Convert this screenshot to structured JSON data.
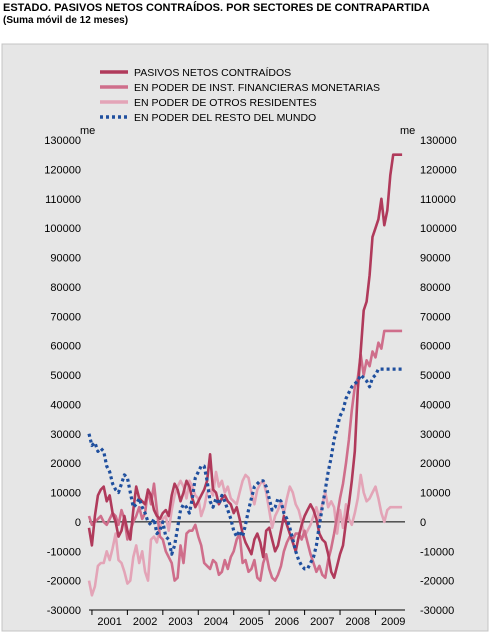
{
  "title": "ESTADO. PASIVOS NETOS CONTRAÍDOS. POR SECTORES DE CONTRAPARTIDA",
  "subtitle": "(Suma móvil de 12 meses)",
  "chart_data": {
    "type": "line",
    "y_unit_left": "me",
    "y_unit_right": "me",
    "ylim": [
      -30000,
      130000
    ],
    "y_ticks": [
      130000,
      120000,
      110000,
      100000,
      90000,
      80000,
      70000,
      60000,
      50000,
      40000,
      30000,
      20000,
      10000,
      0,
      -10000,
      -20000,
      -30000
    ],
    "x_range": [
      2000.917,
      2009.833
    ],
    "x_tick_labels": [
      "2001",
      "2002",
      "2003",
      "2004",
      "2005",
      "2006",
      "2007",
      "2008",
      "2009"
    ],
    "x_tick_positions": [
      2001.5,
      2002.5,
      2003.5,
      2004.5,
      2005.5,
      2006.5,
      2007.5,
      2008.5,
      2009.5
    ],
    "grid": false,
    "legend_position": "top-left",
    "series": [
      {
        "name": "PASIVOS NETOS CONTRAÍDOS",
        "color": "#b03a5b",
        "style": "solid",
        "x": [
          2000.917,
          2001.0,
          2001.083,
          2001.167,
          2001.25,
          2001.333,
          2001.417,
          2001.5,
          2001.583,
          2001.667,
          2001.75,
          2001.833,
          2001.917,
          2002.0,
          2002.083,
          2002.167,
          2002.25,
          2002.333,
          2002.417,
          2002.5,
          2002.583,
          2002.667,
          2002.75,
          2002.833,
          2002.917,
          2003.0,
          2003.083,
          2003.167,
          2003.25,
          2003.333,
          2003.417,
          2003.5,
          2003.583,
          2003.667,
          2003.75,
          2003.833,
          2003.917,
          2004.0,
          2004.083,
          2004.167,
          2004.25,
          2004.333,
          2004.417,
          2004.5,
          2004.583,
          2004.667,
          2004.75,
          2004.833,
          2004.917,
          2005.0,
          2005.083,
          2005.167,
          2005.25,
          2005.333,
          2005.417,
          2005.5,
          2005.583,
          2005.667,
          2005.75,
          2005.833,
          2005.917,
          2006.0,
          2006.083,
          2006.167,
          2006.25,
          2006.333,
          2006.417,
          2006.5,
          2006.583,
          2006.667,
          2006.75,
          2006.833,
          2006.917,
          2007.0,
          2007.083,
          2007.167,
          2007.25,
          2007.333,
          2007.417,
          2007.5,
          2007.583,
          2007.667,
          2007.75,
          2007.833,
          2007.917,
          2008.0,
          2008.083,
          2008.167,
          2008.25,
          2008.333,
          2008.417,
          2008.5,
          2008.583,
          2008.667,
          2008.75,
          2008.833,
          2008.917,
          2009.0,
          2009.083,
          2009.167,
          2009.25,
          2009.333,
          2009.417,
          2009.5,
          2009.583,
          2009.667,
          2009.75
        ],
        "values": [
          -2000,
          -8000,
          2000,
          9000,
          11000,
          12000,
          7000,
          9000,
          3000,
          0,
          -5000,
          -3000,
          2000,
          -3000,
          -6000,
          4000,
          12000,
          8000,
          7000,
          6000,
          11000,
          9000,
          4000,
          2000,
          1000,
          3000,
          4000,
          2000,
          9000,
          13000,
          11000,
          7000,
          10000,
          14000,
          12000,
          8000,
          5000,
          7000,
          9000,
          11000,
          14000,
          23000,
          11000,
          10000,
          6000,
          8000,
          9000,
          7000,
          6000,
          3000,
          5000,
          1000,
          -4000,
          -7000,
          -9000,
          -11000,
          -6000,
          -4000,
          -7000,
          -12000,
          -3000,
          -2000,
          -6000,
          -10000,
          -8000,
          -3000,
          2000,
          -1000,
          -4000,
          -7000,
          -10000,
          -5000,
          -1000,
          2000,
          4000,
          6000,
          4000,
          1000,
          -4000,
          -6000,
          -7000,
          -11000,
          -17000,
          -19000,
          -15000,
          -11000,
          -8000,
          0,
          6000,
          14000,
          24000,
          45000,
          58000,
          72000,
          75000,
          84000,
          97000,
          100000,
          103000,
          110000,
          101000,
          106000,
          118000,
          125000,
          125000,
          125000,
          125000
        ],
        "x_end": 2009.75
      },
      {
        "name": "EN PODER DE INST. FINANCIERAS MONETARIAS",
        "color": "#cf6e8b",
        "style": "solid",
        "x": [
          2000.917,
          2001.0,
          2001.083,
          2001.167,
          2001.25,
          2001.333,
          2001.417,
          2001.5,
          2001.583,
          2001.667,
          2001.75,
          2001.833,
          2001.917,
          2002.0,
          2002.083,
          2002.167,
          2002.25,
          2002.333,
          2002.417,
          2002.5,
          2002.583,
          2002.667,
          2002.75,
          2002.833,
          2002.917,
          2003.0,
          2003.083,
          2003.167,
          2003.25,
          2003.333,
          2003.417,
          2003.5,
          2003.583,
          2003.667,
          2003.75,
          2003.833,
          2003.917,
          2004.0,
          2004.083,
          2004.167,
          2004.25,
          2004.333,
          2004.417,
          2004.5,
          2004.583,
          2004.667,
          2004.75,
          2004.833,
          2004.917,
          2005.0,
          2005.083,
          2005.167,
          2005.25,
          2005.333,
          2005.417,
          2005.5,
          2005.583,
          2005.667,
          2005.75,
          2005.833,
          2005.917,
          2006.0,
          2006.083,
          2006.167,
          2006.25,
          2006.333,
          2006.417,
          2006.5,
          2006.583,
          2006.667,
          2006.75,
          2006.833,
          2006.917,
          2007.0,
          2007.083,
          2007.167,
          2007.25,
          2007.333,
          2007.417,
          2007.5,
          2007.583,
          2007.667,
          2007.75,
          2007.833,
          2007.917,
          2008.0,
          2008.083,
          2008.167,
          2008.25,
          2008.333,
          2008.417,
          2008.5,
          2008.583,
          2008.667,
          2008.75,
          2008.833,
          2008.917,
          2009.0,
          2009.083,
          2009.167,
          2009.25,
          2009.333,
          2009.417,
          2009.5,
          2009.583,
          2009.667,
          2009.75
        ],
        "values": [
          2000,
          -1000,
          0,
          1000,
          2000,
          0,
          -1000,
          1000,
          3000,
          2000,
          -1000,
          4000,
          1000,
          -6000,
          -3000,
          0,
          2000,
          5000,
          1000,
          3000,
          11000,
          6000,
          13000,
          4000,
          -5000,
          -6000,
          -10000,
          -12000,
          -14000,
          -20000,
          -19000,
          -8000,
          -14000,
          -4000,
          -3000,
          -3000,
          -1000,
          -5000,
          -8000,
          -14000,
          -15000,
          -16000,
          -13000,
          -14000,
          -18000,
          -17000,
          -13000,
          -16000,
          -12000,
          -10000,
          -6000,
          -4000,
          -14000,
          -13000,
          -17000,
          -16000,
          -13000,
          -19000,
          -20000,
          -14000,
          -11000,
          -16000,
          -19000,
          -20000,
          -18000,
          -15000,
          -10000,
          -7000,
          -5000,
          -6000,
          -4000,
          -4000,
          -6000,
          -3000,
          -7000,
          -11000,
          -14000,
          -17000,
          -15000,
          -18000,
          -19000,
          -13000,
          -9000,
          -4000,
          2000,
          8000,
          13000,
          20000,
          28000,
          38000,
          46000,
          49000,
          57000,
          50000,
          55000,
          53000,
          58000,
          56000,
          61000,
          59000,
          65000,
          65000,
          65000,
          65000,
          65000,
          65000,
          65000
        ],
        "x_end": 2009.75
      },
      {
        "name": "EN PODER DE OTROS RESIDENTES",
        "color": "#e3a4b7",
        "style": "solid",
        "x": [
          2000.917,
          2001.0,
          2001.083,
          2001.167,
          2001.25,
          2001.333,
          2001.417,
          2001.5,
          2001.583,
          2001.667,
          2001.75,
          2001.833,
          2001.917,
          2002.0,
          2002.083,
          2002.167,
          2002.25,
          2002.333,
          2002.417,
          2002.5,
          2002.583,
          2002.667,
          2002.75,
          2002.833,
          2002.917,
          2003.0,
          2003.083,
          2003.167,
          2003.25,
          2003.333,
          2003.417,
          2003.5,
          2003.583,
          2003.667,
          2003.75,
          2003.833,
          2003.917,
          2004.0,
          2004.083,
          2004.167,
          2004.25,
          2004.333,
          2004.417,
          2004.5,
          2004.583,
          2004.667,
          2004.75,
          2004.833,
          2004.917,
          2005.0,
          2005.083,
          2005.167,
          2005.25,
          2005.333,
          2005.417,
          2005.5,
          2005.583,
          2005.667,
          2005.75,
          2005.833,
          2005.917,
          2006.0,
          2006.083,
          2006.167,
          2006.25,
          2006.333,
          2006.417,
          2006.5,
          2006.583,
          2006.667,
          2006.75,
          2006.833,
          2006.917,
          2007.0,
          2007.083,
          2007.167,
          2007.25,
          2007.333,
          2007.417,
          2007.5,
          2007.583,
          2007.667,
          2007.75,
          2007.833,
          2007.917,
          2008.0,
          2008.083,
          2008.167,
          2008.25,
          2008.333,
          2008.417,
          2008.5,
          2008.583,
          2008.667,
          2008.75,
          2008.833,
          2008.917,
          2009.0,
          2009.083,
          2009.167,
          2009.25,
          2009.333,
          2009.417,
          2009.5,
          2009.583,
          2009.667,
          2009.75
        ],
        "values": [
          -20000,
          -25000,
          -22000,
          -15000,
          -14000,
          -14000,
          -10000,
          -13000,
          -9000,
          -4000,
          -13000,
          -14000,
          -17000,
          -21000,
          -20000,
          -12000,
          -8000,
          -14000,
          -10000,
          -17000,
          -20000,
          -6000,
          -5000,
          -7000,
          -2000,
          1000,
          2000,
          -3000,
          4000,
          9000,
          12000,
          14000,
          12000,
          8000,
          14000,
          12000,
          9000,
          8000,
          2000,
          5000,
          10000,
          11000,
          9000,
          17000,
          12000,
          14000,
          10000,
          12000,
          8000,
          7000,
          6000,
          10000,
          14000,
          16000,
          15000,
          10000,
          6000,
          11000,
          13000,
          14000,
          10000,
          4000,
          -2000,
          2000,
          4000,
          7000,
          3000,
          8000,
          12000,
          10000,
          6000,
          4000,
          0,
          -5000,
          -3000,
          -1000,
          2000,
          5000,
          1000,
          6000,
          10000,
          5000,
          7000,
          5000,
          -4000,
          4000,
          -2000,
          6000,
          1000,
          -1000,
          3000,
          8000,
          16000,
          10000,
          7000,
          8000,
          10000,
          12000,
          8000,
          3000,
          0,
          4000,
          5000,
          5000,
          5000,
          5000,
          5000
        ],
        "x_end": 2009.75
      },
      {
        "name": "EN PODER DEL RESTO DEL MUNDO",
        "color": "#1f4f9e",
        "style": "dotted",
        "x": [
          2000.917,
          2001.0,
          2001.083,
          2001.167,
          2001.25,
          2001.333,
          2001.417,
          2001.5,
          2001.583,
          2001.667,
          2001.75,
          2001.833,
          2001.917,
          2002.0,
          2002.083,
          2002.167,
          2002.25,
          2002.333,
          2002.417,
          2002.5,
          2002.583,
          2002.667,
          2002.75,
          2002.833,
          2002.917,
          2003.0,
          2003.083,
          2003.167,
          2003.25,
          2003.333,
          2003.417,
          2003.5,
          2003.583,
          2003.667,
          2003.75,
          2003.833,
          2003.917,
          2004.0,
          2004.083,
          2004.167,
          2004.25,
          2004.333,
          2004.417,
          2004.5,
          2004.583,
          2004.667,
          2004.75,
          2004.833,
          2004.917,
          2005.0,
          2005.083,
          2005.167,
          2005.25,
          2005.333,
          2005.417,
          2005.5,
          2005.583,
          2005.667,
          2005.75,
          2005.833,
          2005.917,
          2006.0,
          2006.083,
          2006.167,
          2006.25,
          2006.333,
          2006.417,
          2006.5,
          2006.583,
          2006.667,
          2006.75,
          2006.833,
          2006.917,
          2007.0,
          2007.083,
          2007.167,
          2007.25,
          2007.333,
          2007.417,
          2007.5,
          2007.583,
          2007.667,
          2007.75,
          2007.833,
          2007.917,
          2008.0,
          2008.083,
          2008.167,
          2008.25,
          2008.333,
          2008.417,
          2008.5,
          2008.583,
          2008.667,
          2008.75,
          2008.833,
          2008.917,
          2009.0,
          2009.083,
          2009.167,
          2009.25,
          2009.333,
          2009.417,
          2009.5,
          2009.583,
          2009.667,
          2009.75
        ],
        "values": [
          30000,
          26000,
          27000,
          24000,
          25000,
          24000,
          19000,
          17000,
          13000,
          11000,
          10000,
          13000,
          16000,
          15000,
          10000,
          5000,
          6000,
          8000,
          5000,
          3000,
          0,
          -1000,
          1000,
          -4000,
          -3000,
          0,
          -5000,
          -6000,
          -11000,
          -8000,
          -2000,
          4000,
          6000,
          5000,
          3000,
          8000,
          15000,
          17000,
          19000,
          19000,
          14000,
          7000,
          5000,
          8000,
          6000,
          9000,
          7000,
          4000,
          1000,
          -3000,
          -5000,
          -3000,
          -5000,
          -1000,
          4000,
          8000,
          12000,
          13000,
          14000,
          14000,
          12000,
          8000,
          4000,
          5000,
          8000,
          7000,
          3000,
          1000,
          -2000,
          -6000,
          -10000,
          -13000,
          -15000,
          -16000,
          -16000,
          -14000,
          -12000,
          -8000,
          -1000,
          5000,
          11000,
          17000,
          22000,
          28000,
          32000,
          36000,
          38000,
          42000,
          44000,
          46000,
          47000,
          48000,
          50000,
          49000,
          48000,
          46000,
          49000,
          50000,
          52000,
          52000,
          52000,
          52000,
          52000,
          52000,
          52000,
          52000,
          52000
        ],
        "x_end": 2009.75
      }
    ]
  }
}
